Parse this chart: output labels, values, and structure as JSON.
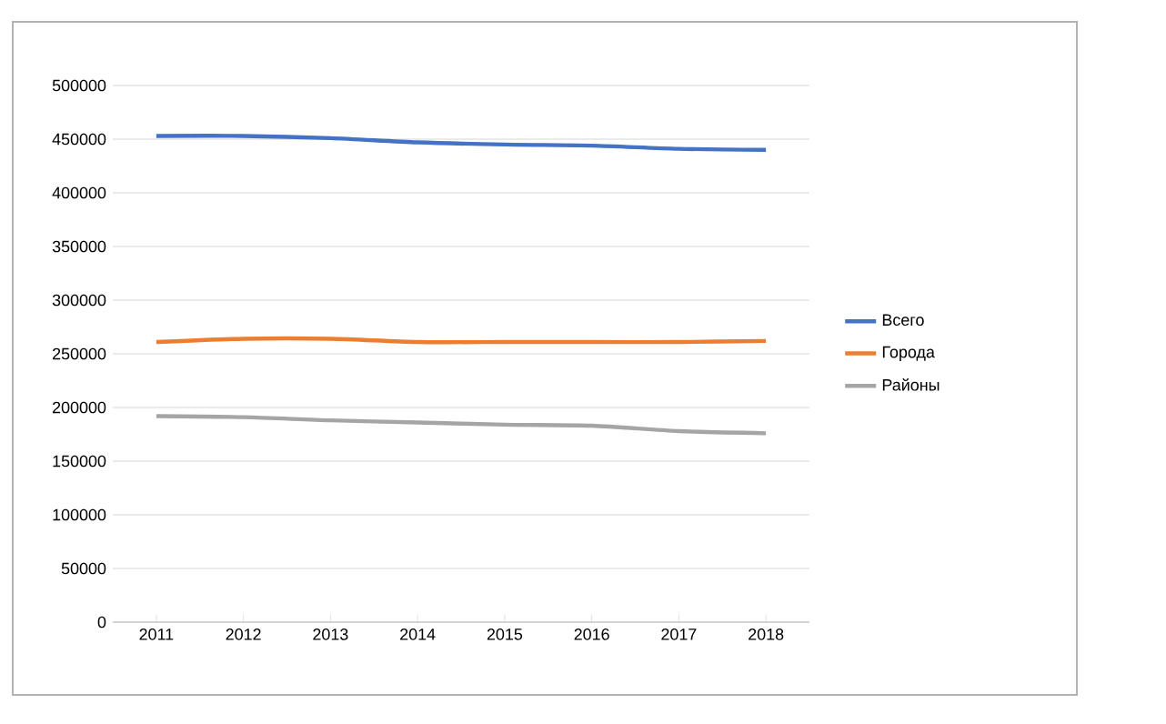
{
  "chart_data": {
    "type": "line",
    "categories": [
      "2011",
      "2012",
      "2013",
      "2014",
      "2015",
      "2016",
      "2017",
      "2018"
    ],
    "series": [
      {
        "name": "Всего",
        "color": "#4472c4",
        "values": [
          453000,
          453000,
          451000,
          447000,
          445000,
          444000,
          441000,
          440000
        ]
      },
      {
        "name": "Города",
        "color": "#ed7d31",
        "values": [
          261000,
          264000,
          264000,
          261000,
          261000,
          261000,
          261000,
          262000
        ]
      },
      {
        "name": "Районы",
        "color": "#a5a5a5",
        "values": [
          192000,
          191000,
          188000,
          186000,
          184000,
          183000,
          178000,
          176000
        ]
      }
    ],
    "ylim": [
      0,
      500000
    ],
    "yticks": [
      0,
      50000,
      100000,
      150000,
      200000,
      250000,
      300000,
      350000,
      400000,
      450000,
      500000
    ],
    "grid": "y",
    "legend": "right",
    "marker": "none",
    "line_style": "solid"
  }
}
